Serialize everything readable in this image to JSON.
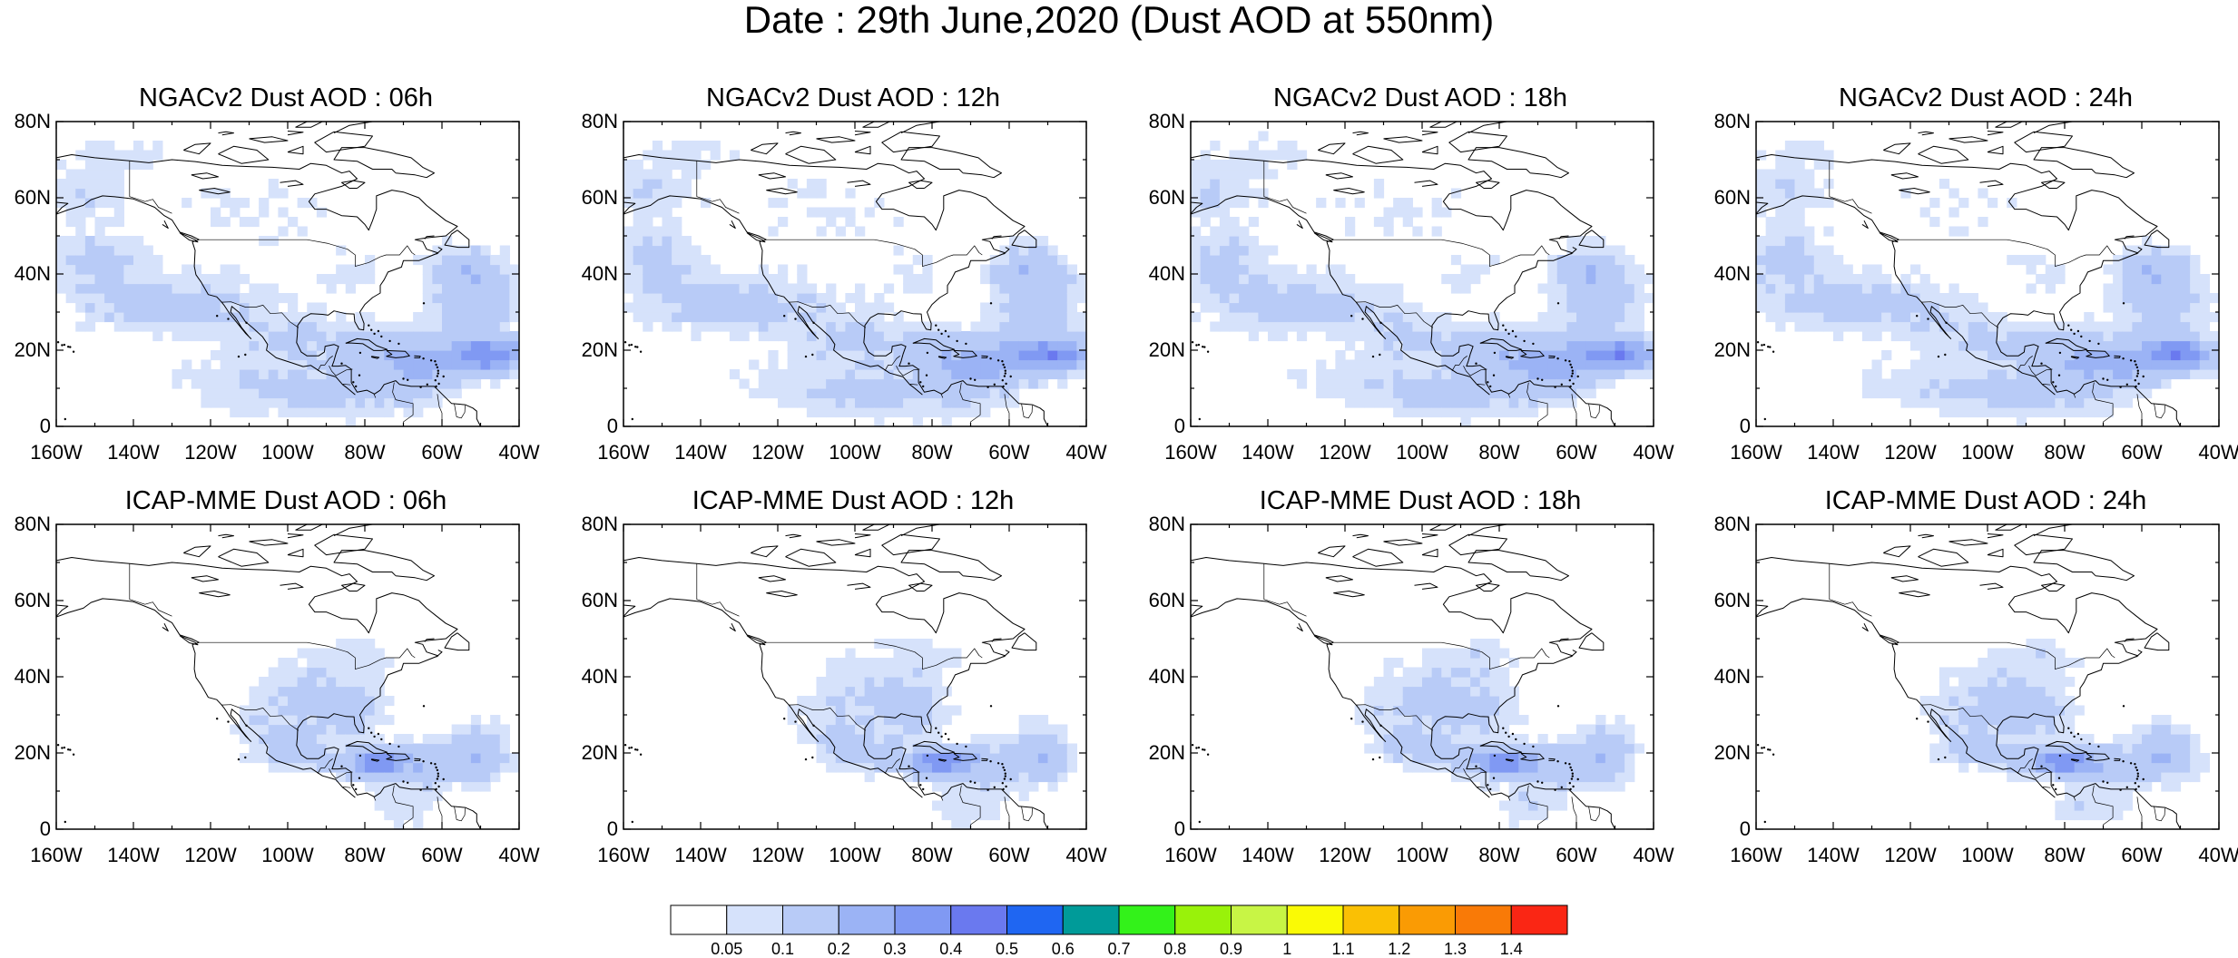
{
  "figure": {
    "title": "Date : 29th June,2020 (Dust AOD at 550nm)"
  },
  "map": {
    "lon_range": [
      -160,
      -40
    ],
    "lat_range": [
      0,
      80
    ],
    "lat_tick_labels": [
      "0",
      "20N",
      "40N",
      "60N",
      "80N"
    ],
    "lon_tick_labels": [
      "160W",
      "140W",
      "120W",
      "100W",
      "80W",
      "60W",
      "40W"
    ],
    "coastline_color": "#000000"
  },
  "panels": [
    {
      "title": "NGACv2 Dust AOD : 06h",
      "model": "NGACv2",
      "hour": "06h"
    },
    {
      "title": "NGACv2 Dust AOD : 12h",
      "model": "NGACv2",
      "hour": "12h"
    },
    {
      "title": "NGACv2 Dust AOD : 18h",
      "model": "NGACv2",
      "hour": "18h"
    },
    {
      "title": "NGACv2 Dust AOD : 24h",
      "model": "NGACv2",
      "hour": "24h"
    },
    {
      "title": "ICAP-MME Dust AOD : 06h",
      "model": "ICAP-MME",
      "hour": "06h"
    },
    {
      "title": "ICAP-MME Dust AOD : 12h",
      "model": "ICAP-MME",
      "hour": "12h"
    },
    {
      "title": "ICAP-MME Dust AOD : 18h",
      "model": "ICAP-MME",
      "hour": "18h"
    },
    {
      "title": "ICAP-MME Dust AOD : 24h",
      "model": "ICAP-MME",
      "hour": "24h"
    }
  ],
  "colorbar": {
    "labels": [
      "0.05",
      "0.1",
      "0.2",
      "0.3",
      "0.4",
      "0.5",
      "0.6",
      "0.7",
      "0.8",
      "0.9",
      "1",
      "1.1",
      "1.2",
      "1.3",
      "1.4"
    ],
    "colors": [
      "#ffffff",
      "#d6e2fb",
      "#b8cbf7",
      "#9bb3f5",
      "#8099f3",
      "#6a79ef",
      "#1f66f2",
      "#009b99",
      "#33f21a",
      "#99f20a",
      "#c8f545",
      "#fafa05",
      "#fac004",
      "#fa9b04",
      "#f97a07",
      "#fa2614"
    ]
  }
}
